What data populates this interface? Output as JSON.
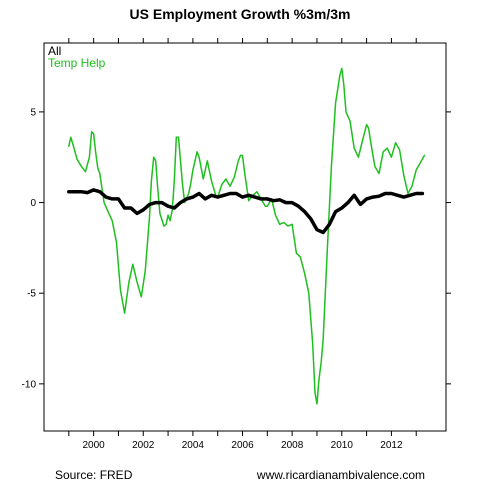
{
  "chart_data": {
    "type": "line",
    "title": "US Employment Growth %3m/3m",
    "xlabel": "",
    "ylabel": "",
    "xlim": [
      1998.0,
      2014.2
    ],
    "ylim": [
      -12.6,
      8.8
    ],
    "x_ticks": [
      {
        "value": 1999,
        "label": ""
      },
      {
        "value": 2000,
        "label": "2000"
      },
      {
        "value": 2001,
        "label": ""
      },
      {
        "value": 2002,
        "label": "2002"
      },
      {
        "value": 2003,
        "label": ""
      },
      {
        "value": 2004,
        "label": "2004"
      },
      {
        "value": 2005,
        "label": ""
      },
      {
        "value": 2006,
        "label": "2006"
      },
      {
        "value": 2007,
        "label": ""
      },
      {
        "value": 2008,
        "label": "2008"
      },
      {
        "value": 2009,
        "label": ""
      },
      {
        "value": 2010,
        "label": "2010"
      },
      {
        "value": 2011,
        "label": ""
      },
      {
        "value": 2012,
        "label": "2012"
      },
      {
        "value": 2013,
        "label": ""
      }
    ],
    "y_ticks": [
      {
        "value": 5,
        "label": "5"
      },
      {
        "value": 0,
        "label": "0"
      },
      {
        "value": -5,
        "label": "-5"
      },
      {
        "value": -10,
        "label": "-10"
      }
    ],
    "grid": false,
    "legend_position": "top-left",
    "series": [
      {
        "name": "All",
        "color": "#000000",
        "x": [
          1999.0,
          1999.25,
          1999.5,
          1999.75,
          2000.0,
          2000.25,
          2000.5,
          2000.75,
          2001.0,
          2001.25,
          2001.5,
          2001.75,
          2002.0,
          2002.25,
          2002.5,
          2002.75,
          2003.0,
          2003.25,
          2003.5,
          2003.75,
          2004.0,
          2004.25,
          2004.5,
          2004.75,
          2005.0,
          2005.25,
          2005.5,
          2005.75,
          2006.0,
          2006.25,
          2006.5,
          2006.75,
          2007.0,
          2007.25,
          2007.5,
          2007.75,
          2008.0,
          2008.25,
          2008.5,
          2008.75,
          2009.0,
          2009.25,
          2009.5,
          2009.75,
          2010.0,
          2010.25,
          2010.5,
          2010.75,
          2011.0,
          2011.25,
          2011.5,
          2011.75,
          2012.0,
          2012.25,
          2012.5,
          2012.75,
          2013.0,
          2013.25
        ],
        "y": [
          0.6,
          0.6,
          0.6,
          0.55,
          0.7,
          0.6,
          0.3,
          0.2,
          0.2,
          -0.3,
          -0.3,
          -0.6,
          -0.4,
          -0.1,
          0.0,
          0.0,
          -0.2,
          -0.3,
          0.0,
          0.2,
          0.3,
          0.5,
          0.2,
          0.4,
          0.3,
          0.4,
          0.5,
          0.5,
          0.3,
          0.4,
          0.3,
          0.2,
          0.2,
          0.1,
          0.15,
          0.0,
          0.0,
          -0.2,
          -0.5,
          -0.9,
          -1.5,
          -1.65,
          -1.2,
          -0.5,
          -0.3,
          0.0,
          0.4,
          -0.1,
          0.2,
          0.3,
          0.35,
          0.5,
          0.5,
          0.4,
          0.3,
          0.4,
          0.5,
          0.5
        ]
      },
      {
        "name": "Temp Help",
        "color": "#1fbf1f",
        "x": [
          1999.0,
          1999.08,
          1999.17,
          1999.25,
          1999.33,
          1999.5,
          1999.67,
          1999.83,
          1999.92,
          2000.0,
          2000.08,
          2000.17,
          2000.25,
          2000.42,
          2000.58,
          2000.75,
          2000.92,
          2001.08,
          2001.25,
          2001.42,
          2001.58,
          2001.75,
          2001.92,
          2002.08,
          2002.25,
          2002.33,
          2002.42,
          2002.5,
          2002.58,
          2002.67,
          2002.83,
          2002.92,
          2003.0,
          2003.08,
          2003.17,
          2003.25,
          2003.33,
          2003.42,
          2003.58,
          2003.67,
          2003.83,
          2003.92,
          2004.0,
          2004.17,
          2004.25,
          2004.42,
          2004.58,
          2004.75,
          2004.92,
          2005.0,
          2005.17,
          2005.33,
          2005.5,
          2005.67,
          2005.83,
          2005.92,
          2006.0,
          2006.08,
          2006.25,
          2006.42,
          2006.58,
          2006.75,
          2006.92,
          2007.0,
          2007.17,
          2007.33,
          2007.5,
          2007.67,
          2007.83,
          2008.0,
          2008.17,
          2008.33,
          2008.5,
          2008.67,
          2008.83,
          2008.92,
          2009.0,
          2009.08,
          2009.17,
          2009.25,
          2009.42,
          2009.58,
          2009.75,
          2009.92,
          2010.0,
          2010.08,
          2010.17,
          2010.33,
          2010.5,
          2010.67,
          2010.83,
          2011.0,
          2011.08,
          2011.17,
          2011.33,
          2011.5,
          2011.67,
          2011.83,
          2012.0,
          2012.17,
          2012.33,
          2012.5,
          2012.67,
          2012.83,
          2013.0,
          2013.17,
          2013.33
        ],
        "y": [
          3.1,
          3.6,
          3.2,
          2.8,
          2.4,
          2.0,
          1.7,
          2.5,
          3.9,
          3.8,
          2.8,
          1.9,
          1.6,
          0.0,
          -0.5,
          -1.0,
          -2.2,
          -4.8,
          -6.1,
          -4.4,
          -3.4,
          -4.4,
          -5.2,
          -3.8,
          -0.8,
          1.2,
          2.5,
          2.3,
          0.8,
          -0.6,
          -1.3,
          -1.2,
          -0.7,
          -1.0,
          -0.4,
          1.2,
          3.6,
          3.6,
          1.0,
          0.0,
          0.5,
          1.1,
          1.8,
          2.8,
          2.5,
          1.3,
          2.3,
          1.2,
          0.4,
          0.3,
          1.0,
          1.3,
          0.9,
          1.4,
          2.3,
          2.6,
          2.6,
          1.7,
          0.1,
          0.4,
          0.6,
          0.2,
          -0.2,
          -0.2,
          0.2,
          -0.7,
          -1.2,
          -1.1,
          -1.3,
          -1.2,
          -2.8,
          -3.0,
          -3.9,
          -5.0,
          -7.8,
          -10.5,
          -11.1,
          -9.8,
          -8.8,
          -7.5,
          -2.5,
          2.0,
          5.5,
          7.0,
          7.4,
          6.5,
          5.0,
          4.5,
          3.0,
          2.5,
          3.4,
          4.3,
          4.1,
          3.3,
          2.0,
          1.6,
          2.8,
          3.0,
          2.5,
          3.3,
          2.9,
          1.5,
          0.5,
          0.9,
          1.8,
          2.2,
          2.6
        ]
      }
    ]
  },
  "footer": {
    "source": "Source: FRED",
    "website": "www.ricardianambivalence.com"
  },
  "colors": {
    "frame": "#000000",
    "background": "#ffffff"
  }
}
